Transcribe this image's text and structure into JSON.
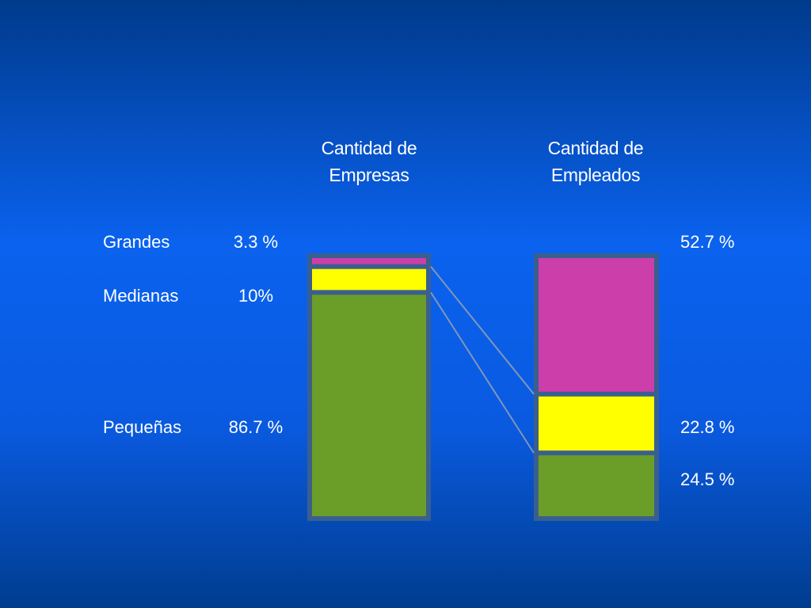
{
  "chart_data": {
    "type": "bar",
    "stacked": true,
    "categories": [
      "Cantidad de Empresas",
      "Cantidad de Empleados"
    ],
    "column_titles": [
      {
        "line1": "Cantidad de",
        "line2": "Empresas"
      },
      {
        "line1": "Cantidad de",
        "line2": "Empleados"
      }
    ],
    "series": [
      {
        "name": "Pequeñas",
        "values": [
          86.7,
          24.5
        ],
        "color": "#6b9e28"
      },
      {
        "name": "Medianas",
        "values": [
          10,
          22.8
        ],
        "color": "#ffff00"
      },
      {
        "name": "Grandes",
        "values": [
          3.3,
          52.7
        ],
        "color": "#cc3eaa"
      }
    ],
    "row_labels": {
      "grandes": "Grandes",
      "medianas": "Medianas",
      "pequenas": "Pequeñas"
    },
    "left_values": {
      "grandes": "3.3 %",
      "medianas": "10%",
      "pequenas": "86.7 %"
    },
    "right_values": {
      "grandes": "52.7 %",
      "medianas": "22.8 %",
      "pequenas": "24.5 %"
    },
    "frame_color": "#3a5f8f",
    "connector_color": "#7f97b8",
    "ylim": [
      0,
      100
    ]
  }
}
